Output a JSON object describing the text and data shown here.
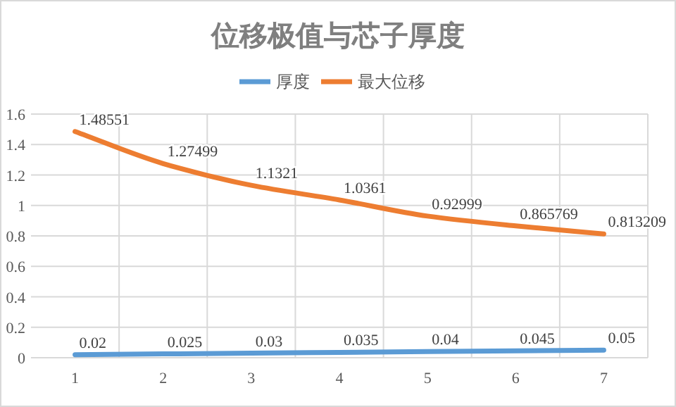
{
  "chart_data": {
    "type": "line",
    "title": "位移极值与芯子厚度",
    "categories": [
      "1",
      "2",
      "3",
      "4",
      "5",
      "6",
      "7"
    ],
    "series": [
      {
        "name": "厚度",
        "color": "#5b9bd5",
        "values": [
          0.02,
          0.025,
          0.03,
          0.035,
          0.04,
          0.045,
          0.05
        ]
      },
      {
        "name": "最大位移",
        "color": "#ed7d31",
        "values": [
          1.48551,
          1.27499,
          1.1321,
          1.0361,
          0.92999,
          0.865769,
          0.813209
        ]
      }
    ],
    "ylim": [
      0,
      1.6
    ],
    "yticks": [
      0,
      0.2,
      0.4,
      0.6,
      0.8,
      1,
      1.2,
      1.4,
      1.6
    ],
    "grid": true,
    "legend": "top",
    "data_labels": true,
    "marker": "none",
    "line_style": "solid"
  }
}
